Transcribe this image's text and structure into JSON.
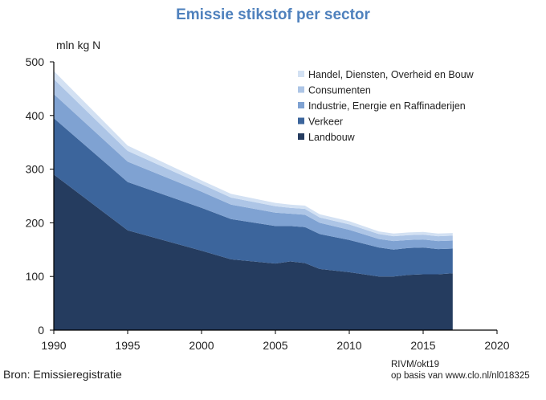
{
  "chart_data": {
    "type": "area",
    "stacked": true,
    "title": "Emissie stikstof per sector",
    "ylabel": "mln kg N",
    "xlabel": "",
    "xlim": [
      1990,
      2020
    ],
    "ylim": [
      0,
      500
    ],
    "x_ticks": [
      1990,
      1995,
      2000,
      2005,
      2010,
      2015,
      2020
    ],
    "y_ticks": [
      0,
      100,
      200,
      300,
      400,
      500
    ],
    "grid": false,
    "legend_position": "top-right",
    "x": [
      1990,
      1995,
      2000,
      2002,
      2005,
      2006,
      2007,
      2008,
      2010,
      2012,
      2013,
      2014,
      2015,
      2016,
      2017
    ],
    "series": [
      {
        "name": "Landbouw",
        "color": "#253c5f",
        "values": [
          290,
          186,
          148,
          132,
          124,
          128,
          125,
          114,
          108,
          100,
          100,
          103,
          104,
          104,
          106
        ]
      },
      {
        "name": "Verkeer",
        "color": "#3c659c",
        "values": [
          105,
          90,
          80,
          75,
          70,
          66,
          67,
          65,
          60,
          54,
          50,
          50,
          50,
          47,
          46
        ]
      },
      {
        "name": "Industrie, Energie en Raffinaderijen",
        "color": "#7fa2d2",
        "values": [
          45,
          38,
          30,
          27,
          25,
          23,
          23,
          21,
          19,
          16,
          16,
          15,
          15,
          15,
          15
        ]
      },
      {
        "name": "Consumenten",
        "color": "#adc5e6",
        "values": [
          28,
          20,
          14,
          13,
          12,
          11,
          11,
          10,
          10,
          9,
          9,
          9,
          9,
          9,
          9
        ]
      },
      {
        "name": "Handel, Diensten, Overheid en Bouw",
        "color": "#d3e1f3",
        "values": [
          15,
          10,
          7,
          7,
          6,
          6,
          6,
          6,
          6,
          5,
          5,
          5,
          5,
          5,
          5
        ]
      }
    ],
    "source": "Bron: Emissieregistratie",
    "credit_line1": "RIVM/okt19",
    "credit_line2": "op basis van www.clo.nl/nl018325"
  }
}
